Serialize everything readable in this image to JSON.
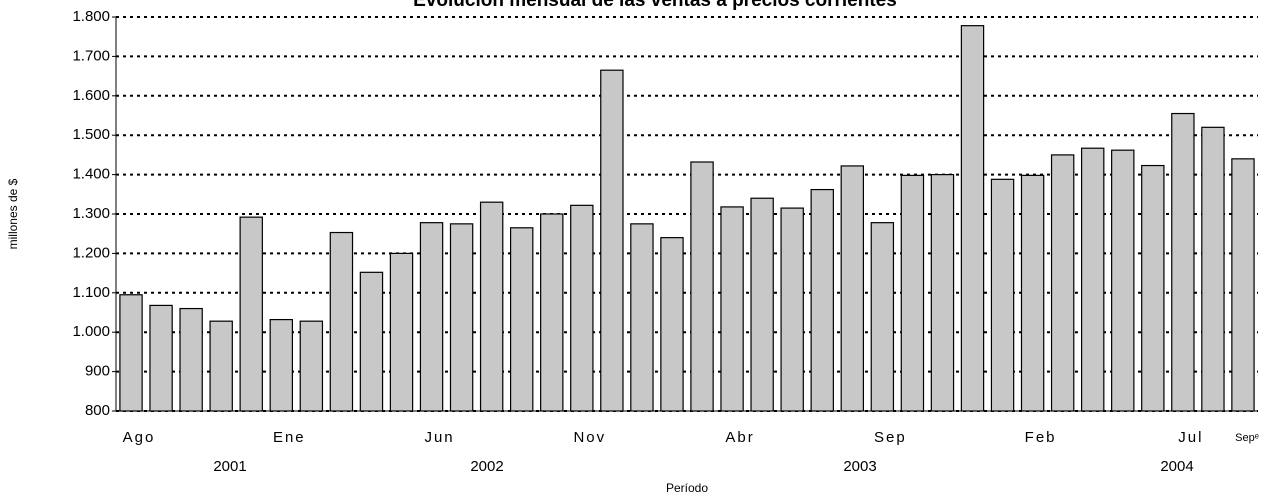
{
  "chart_data": {
    "type": "bar",
    "title": "Evolución mensual de las ventas a precios corrientes",
    "y_label": "millones de $",
    "x_label": "Período",
    "categories": [
      "Ago",
      null,
      null,
      null,
      null,
      "Ene",
      null,
      null,
      null,
      null,
      "Jun",
      null,
      null,
      null,
      null,
      "Nov",
      null,
      null,
      null,
      null,
      "Abr",
      null,
      null,
      null,
      null,
      "Sep",
      null,
      null,
      null,
      null,
      "Feb",
      null,
      null,
      null,
      null,
      "Jul",
      null,
      "Sepᵉ"
    ],
    "years": [
      "2001",
      "2002",
      "2003",
      "2004"
    ],
    "values": [
      1095,
      1068,
      1060,
      1028,
      1292,
      1032,
      1028,
      1253,
      1152,
      1200,
      1278,
      1275,
      1330,
      1265,
      1300,
      1322,
      1665,
      1275,
      1240,
      1432,
      1318,
      1340,
      1315,
      1362,
      1422,
      1278,
      1398,
      1400,
      1778,
      1388,
      1398,
      1450,
      1467,
      1462,
      1423,
      1555,
      1520,
      1440
    ],
    "color": "#c8c8c8",
    "ylim": [
      800,
      1800
    ],
    "yticks": [
      800,
      900,
      {
        "value": 1000,
        "label": "1.000"
      },
      {
        "value": 1100,
        "label": "1.100"
      },
      {
        "value": 1200,
        "label": "1.200"
      },
      {
        "value": 1300,
        "label": "1.300"
      },
      {
        "value": 1400,
        "label": "1.400"
      },
      {
        "value": 1500,
        "label": "1.500"
      },
      {
        "value": 1600,
        "label": "1.600"
      },
      {
        "value": 1700,
        "label": "1.700"
      },
      {
        "value": 1800,
        "label": "1.800"
      }
    ],
    "grid": true
  }
}
